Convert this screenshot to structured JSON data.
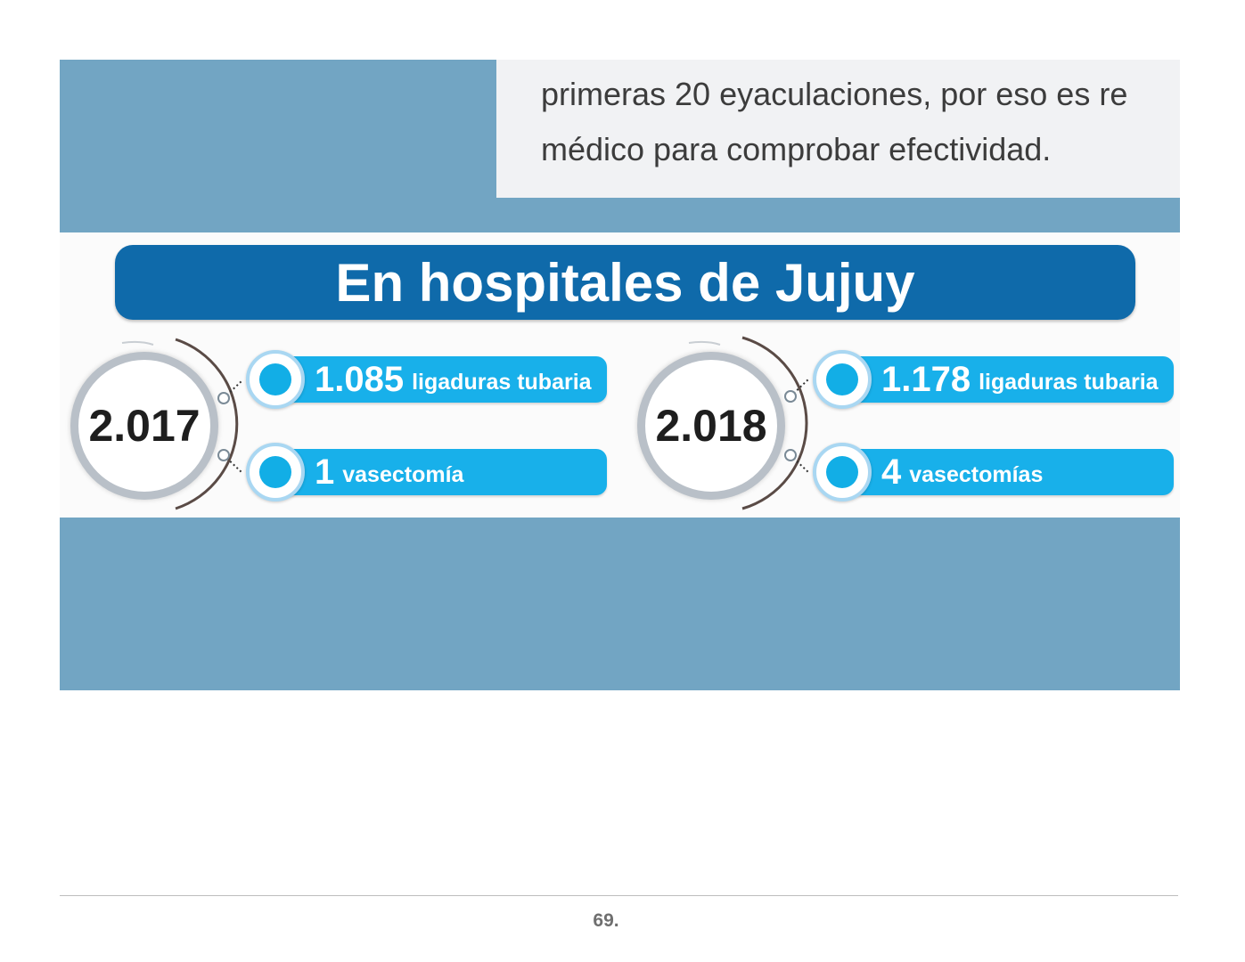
{
  "excerpt": {
    "line1": "primeras 20 eyaculaciones, por eso es re",
    "line2": "médico para comprobar efectividad."
  },
  "infographic": {
    "title": "En hospitales de Jujuy",
    "groups": [
      {
        "year": "2.017",
        "items": [
          {
            "count": "1.085",
            "label": "ligaduras tubaria"
          },
          {
            "count": "1",
            "label": "vasectomía"
          }
        ]
      },
      {
        "year": "2.018",
        "items": [
          {
            "count": "1.178",
            "label": "ligaduras tubaria"
          },
          {
            "count": "4",
            "label": "vasectomías"
          }
        ]
      }
    ]
  },
  "colors": {
    "band": "#72a5c3",
    "banner": "#0f6aaa",
    "pill": "#18b0ea"
  },
  "footer": {
    "page_number": "69."
  }
}
